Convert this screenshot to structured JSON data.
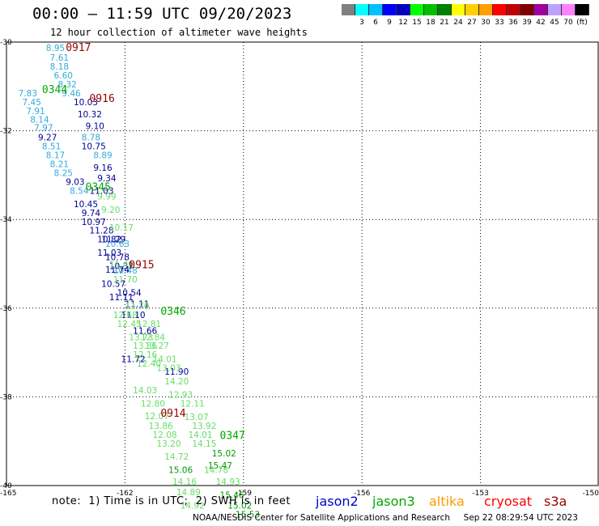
{
  "header": {
    "title": "00:00 – 11:59 UTC 09/20/2023",
    "subtitle": "12 hour collection of altimeter wave heights"
  },
  "colorbar": {
    "colors": [
      "#808080",
      "#00ffff",
      "#00c0ff",
      "#0000ff",
      "#0000c0",
      "#00ff00",
      "#00c000",
      "#008000",
      "#ffff00",
      "#ffd000",
      "#ffa000",
      "#ff0000",
      "#c00000",
      "#800000",
      "#a000a0",
      "#c0a0ff",
      "#ff80ff",
      "#000000"
    ],
    "labels": [
      "3",
      "6",
      "9",
      "12",
      "15",
      "18",
      "21",
      "24",
      "27",
      "30",
      "33",
      "36",
      "39",
      "42",
      "45",
      "70"
    ],
    "unit": "(ft)"
  },
  "footer": {
    "note": "note:  1) Time is in UTC;  2) SWH is in feet",
    "credit": "NOAA/NESDIS Center for Satellite Applications and Research     Sep 22 08:29:54 UTC 2023",
    "missions": [
      {
        "name": "jason2",
        "color": "#0000cc"
      },
      {
        "name": "jason3",
        "color": "#00aa00"
      },
      {
        "name": "altika",
        "color": "#ff9900"
      },
      {
        "name": "cryosat",
        "color": "#ff0000"
      },
      {
        "name": "s3a",
        "color": "#990000"
      }
    ]
  },
  "chart_data": {
    "type": "scatter",
    "xlim": [
      -165,
      -150
    ],
    "ylim": [
      -40,
      -30
    ],
    "xticks": [
      "-165",
      "-162",
      "-159",
      "-156",
      "-153",
      "-150"
    ],
    "yticks": [
      "-30",
      "-32",
      "-34",
      "-36",
      "-38",
      "-40"
    ],
    "grid": true,
    "time_labels": [
      {
        "text": "0917",
        "x": -163.5,
        "y": -30.2,
        "color": "#990000"
      },
      {
        "text": "0916",
        "x": -162.9,
        "y": -31.35,
        "color": "#990000"
      },
      {
        "text": "0915",
        "x": -161.9,
        "y": -35.1,
        "color": "#990000"
      },
      {
        "text": "0914",
        "x": -161.1,
        "y": -38.45,
        "color": "#990000"
      },
      {
        "text": "0345",
        "x": -163.0,
        "y": -33.35,
        "color": "#00aa00"
      },
      {
        "text": "0346",
        "x": -161.1,
        "y": -36.15,
        "color": "#00aa00"
      },
      {
        "text": "0347",
        "x": -159.6,
        "y": -38.95,
        "color": "#00aa00"
      },
      {
        "text": "0344",
        "x": -164.1,
        "y": -31.15,
        "color": "#00aa00"
      }
    ],
    "series": [
      {
        "color": "#33aadd",
        "points": [
          [
            -164.0,
            -30.2,
            "8.95"
          ],
          [
            -163.9,
            -30.42,
            "7.61"
          ],
          [
            -163.9,
            -30.62,
            "8.18"
          ],
          [
            -163.8,
            -30.82,
            "6.60"
          ],
          [
            -163.7,
            -31.02,
            "8.32"
          ],
          [
            -164.7,
            -31.22,
            "7.83"
          ],
          [
            -163.6,
            -31.22,
            "9.46"
          ],
          [
            -164.6,
            -31.42,
            "7.45"
          ],
          [
            -164.5,
            -31.62,
            "7.91"
          ],
          [
            -164.4,
            -31.82,
            "8.14"
          ],
          [
            -164.3,
            -32.0,
            "7.97"
          ],
          [
            -163.1,
            -32.22,
            "8.78"
          ],
          [
            -164.1,
            -32.42,
            "8.51"
          ],
          [
            -164.0,
            -32.62,
            "8.17"
          ],
          [
            -162.8,
            -32.62,
            "8.89"
          ],
          [
            -163.9,
            -32.82,
            "8.21"
          ],
          [
            -163.8,
            -33.02,
            "8.25"
          ],
          [
            -163.4,
            -33.42,
            "8.54"
          ],
          [
            -162.5,
            -34.62,
            "10.63"
          ],
          [
            -162.3,
            -35.22,
            "10.48"
          ]
        ]
      },
      {
        "color": "#000099",
        "points": [
          [
            -163.3,
            -31.42,
            "10.03"
          ],
          [
            -163.2,
            -31.7,
            "10.32"
          ],
          [
            -163.0,
            -31.96,
            "9.10"
          ],
          [
            -164.2,
            -32.22,
            "9.27"
          ],
          [
            -163.1,
            -32.42,
            "10.75"
          ],
          [
            -162.8,
            -32.9,
            "9.16"
          ],
          [
            -163.5,
            -33.22,
            "9.03"
          ],
          [
            -162.7,
            -33.14,
            "9.34"
          ],
          [
            -162.9,
            -33.42,
            "11.03"
          ],
          [
            -163.3,
            -33.72,
            "10.45"
          ],
          [
            -163.1,
            -33.92,
            "9.74"
          ],
          [
            -163.1,
            -34.12,
            "10.97"
          ],
          [
            -162.9,
            -34.32,
            "11.28"
          ],
          [
            -162.7,
            -34.52,
            "10.82"
          ],
          [
            -162.6,
            -34.52,
            "11.29"
          ],
          [
            -162.7,
            -34.82,
            "11.03"
          ],
          [
            -162.5,
            -34.92,
            "10.78"
          ],
          [
            -162.4,
            -35.12,
            "10.37"
          ],
          [
            -162.5,
            -35.2,
            "11.74"
          ],
          [
            -162.6,
            -35.52,
            "10.57"
          ],
          [
            -162.4,
            -35.82,
            "11.11"
          ],
          [
            -162.2,
            -35.72,
            "10.54"
          ],
          [
            -162.0,
            -35.98,
            "11.11"
          ],
          [
            -161.8,
            -36.58,
            "11.66"
          ],
          [
            -162.1,
            -37.22,
            "11.72"
          ],
          [
            -161.0,
            -37.5,
            "11.90"
          ],
          [
            -162.1,
            -36.22,
            "11.10"
          ]
        ]
      },
      {
        "color": "#66dd66",
        "points": [
          [
            -162.7,
            -33.55,
            "9.99"
          ],
          [
            -162.6,
            -33.85,
            "9.20"
          ],
          [
            -162.4,
            -34.25,
            "10.17"
          ],
          [
            -162.4,
            -35.08,
            "11.49"
          ],
          [
            -162.3,
            -35.42,
            "11.70"
          ],
          [
            -162.0,
            -36.02,
            "11.70"
          ],
          [
            -162.3,
            -36.22,
            "12.68"
          ],
          [
            -162.2,
            -36.42,
            "12.45"
          ],
          [
            -161.7,
            -36.42,
            "12.81"
          ],
          [
            -161.9,
            -36.72,
            "13.73"
          ],
          [
            -161.6,
            -36.72,
            "12.84"
          ],
          [
            -161.8,
            -36.92,
            "13.36"
          ],
          [
            -161.5,
            -36.92,
            "13.27"
          ],
          [
            -161.8,
            -37.12,
            "12.16"
          ],
          [
            -161.3,
            -37.22,
            "14.01"
          ],
          [
            -161.7,
            -37.32,
            "12.40"
          ],
          [
            -161.2,
            -37.42,
            "13.03"
          ],
          [
            -161.0,
            -37.72,
            "14.20"
          ],
          [
            -161.8,
            -37.92,
            "14.03"
          ],
          [
            -160.9,
            -38.02,
            "12.93"
          ],
          [
            -161.6,
            -38.22,
            "12.80"
          ],
          [
            -160.6,
            -38.22,
            "12.11"
          ],
          [
            -161.5,
            -38.5,
            "12.07"
          ],
          [
            -160.5,
            -38.52,
            "13.07"
          ],
          [
            -161.4,
            -38.72,
            "13.86"
          ],
          [
            -160.3,
            -38.72,
            "13.92"
          ],
          [
            -161.3,
            -38.92,
            "12.08"
          ],
          [
            -160.4,
            -38.92,
            "14.01"
          ],
          [
            -161.2,
            -39.12,
            "13.20"
          ],
          [
            -160.3,
            -39.12,
            "14.15"
          ],
          [
            -161.0,
            -39.42,
            "14.72"
          ],
          [
            -160.0,
            -39.72,
            "14.78"
          ],
          [
            -160.8,
            -39.98,
            "14.16"
          ],
          [
            -159.7,
            -39.98,
            "14.93"
          ],
          [
            -160.7,
            -40.22,
            "14.89"
          ],
          [
            -160.6,
            -40.52,
            "14.92"
          ]
        ]
      },
      {
        "color": "#009900",
        "points": [
          [
            -159.8,
            -39.34,
            "15.02"
          ],
          [
            -159.9,
            -39.62,
            "15.47"
          ],
          [
            -160.9,
            -39.72,
            "15.06"
          ],
          [
            -159.6,
            -40.28,
            "15.46"
          ],
          [
            -159.4,
            -40.52,
            "15.02"
          ],
          [
            -159.2,
            -40.72,
            "15.53"
          ]
        ]
      }
    ]
  }
}
